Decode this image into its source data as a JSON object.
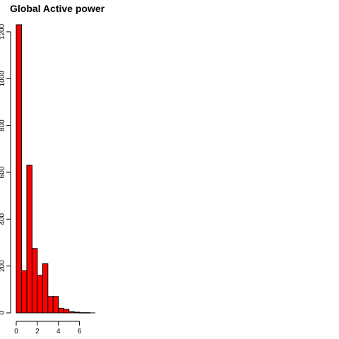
{
  "chart_data": {
    "type": "bar",
    "title": "Global Active power",
    "xlabel": "",
    "ylabel": "",
    "bin_width": 0.5,
    "x": [
      0,
      0.5,
      1,
      1.5,
      2,
      2.5,
      3,
      3.5,
      4,
      4.5,
      5,
      5.5,
      6,
      6.5,
      7
    ],
    "values": [
      1230,
      180,
      630,
      275,
      160,
      210,
      70,
      70,
      20,
      15,
      5,
      3,
      1,
      1,
      0
    ],
    "xlim": [
      0,
      7.5
    ],
    "ylim": [
      0,
      1230
    ],
    "x_ticks": [
      "0",
      "2",
      "4",
      "6"
    ],
    "y_ticks": [
      "0",
      "200",
      "400",
      "600",
      "800",
      "1000",
      "1200"
    ],
    "bar_color": "#ff0000",
    "bar_border_color": "#000000",
    "grid": false,
    "legend": "none"
  }
}
